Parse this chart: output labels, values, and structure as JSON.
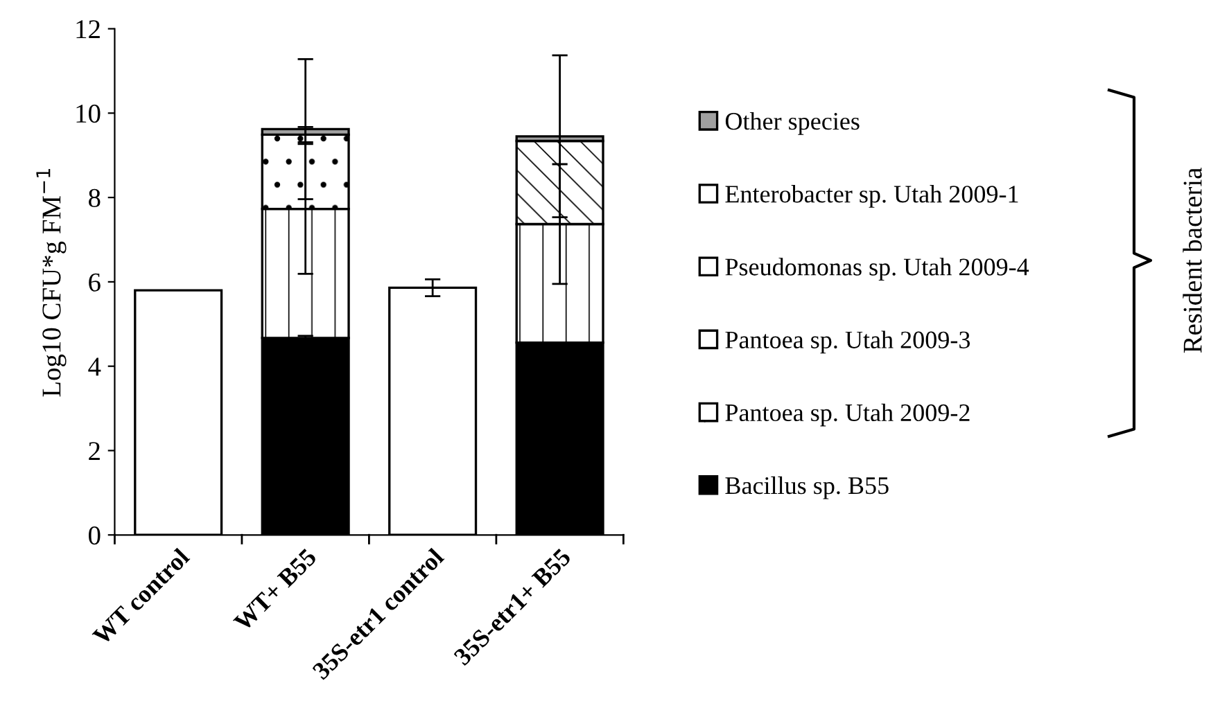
{
  "chart_data": {
    "type": "bar",
    "stacked": true,
    "ylabel": "Log10 CFU*g FM$^{−1}$",
    "categories": [
      "WT control",
      "WT+ B55",
      "35S-etr1 control",
      "35S-etr1+ B55"
    ],
    "series": [
      {
        "color": "#ffffff",
        "values": [
          5.8,
          null,
          5.86,
          null
        ],
        "errors": [
          null,
          null,
          0.2,
          null
        ]
      },
      {
        "name": "Bacillus sp. B55",
        "color": "#000000",
        "values": [
          null,
          4.67,
          null,
          4.56
        ],
        "errors": [
          null,
          0.05,
          null,
          null
        ]
      },
      {
        "name": "Pantoea sp. Utah 2009-2",
        "color": "#ffffff",
        "values": [
          null,
          3.06,
          null,
          2.81
        ],
        "errors": [
          null,
          1.54,
          null,
          1.42
        ]
      },
      {
        "name": "Pantoea sp. Utah 2009-3",
        "color": "#ffffff",
        "values": [
          null,
          1.76,
          null,
          null
        ],
        "errors": [
          null,
          0.18,
          null,
          null
        ]
      },
      {
        "name": "Pseudomonas sp. Utah 2009-4",
        "color": "#ffffff",
        "values": [
          null,
          null,
          null,
          1.97
        ],
        "errors": [
          null,
          null,
          null,
          null
        ]
      },
      {
        "name": "Enterobacter sp. Utah 2009-1",
        "color": "#ffffff",
        "values": [
          null,
          null,
          null,
          null
        ],
        "errors": [
          null,
          null,
          null,
          null
        ]
      },
      {
        "name": "Other species",
        "color": "#a0a0a0",
        "values": [
          null,
          0.13,
          null,
          0.11
        ],
        "errors": [
          null,
          1.66,
          null,
          1.92
        ]
      }
    ],
    "ylim": [
      0,
      12
    ],
    "yticks": [
      0,
      2,
      4,
      6,
      8,
      10,
      12
    ],
    "grid": false,
    "legend": "right",
    "annotations": [
      "Resident bacteria"
    ]
  }
}
